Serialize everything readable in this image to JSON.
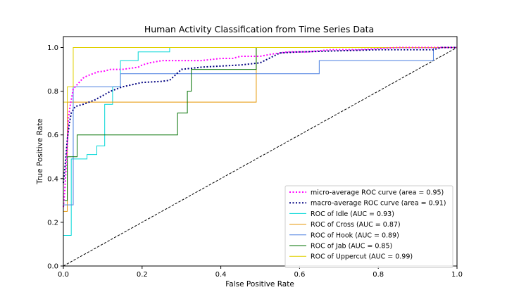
{
  "chart_data": {
    "type": "line",
    "title": "Human Activity Classification from Time Series Data",
    "xlabel": "False Positive Rate",
    "ylabel": "True Positive Rate",
    "xlim": [
      0,
      1
    ],
    "ylim": [
      0,
      1.05
    ],
    "xticks": [
      0.0,
      0.2,
      0.4,
      0.6,
      0.8,
      1.0
    ],
    "yticks": [
      0.0,
      0.2,
      0.4,
      0.6,
      0.8,
      1.0
    ],
    "xtick_labels": [
      "0.0",
      "0.2",
      "0.4",
      "0.6",
      "0.8",
      "1.0"
    ],
    "ytick_labels": [
      "0.0",
      "0.2",
      "0.4",
      "0.6",
      "0.8",
      "1.0"
    ],
    "grid": false,
    "legend_position": "lower-right",
    "series": [
      {
        "name": "micro-average ROC curve (area = 0.95)",
        "color": "#ff00ff",
        "style": "dotted",
        "x": [
          0,
          0.003,
          0.006,
          0.01,
          0.013,
          0.017,
          0.02,
          0.025,
          0.03,
          0.04,
          0.05,
          0.06,
          0.075,
          0.09,
          0.1,
          0.12,
          0.15,
          0.19,
          0.2,
          0.22,
          0.25,
          0.3,
          0.35,
          0.4,
          0.43,
          0.45,
          0.5,
          0.53,
          0.57,
          0.62,
          0.68,
          0.75,
          0.85,
          1.0
        ],
        "y": [
          0.27,
          0.33,
          0.42,
          0.55,
          0.68,
          0.73,
          0.76,
          0.81,
          0.82,
          0.84,
          0.86,
          0.87,
          0.88,
          0.89,
          0.89,
          0.9,
          0.9,
          0.91,
          0.92,
          0.93,
          0.94,
          0.94,
          0.94,
          0.95,
          0.95,
          0.96,
          0.96,
          0.97,
          0.98,
          0.98,
          0.99,
          0.99,
          1.0,
          1.0
        ]
      },
      {
        "name": "macro-average ROC curve (area = 0.91)",
        "color": "#000080",
        "style": "dotted",
        "x": [
          0,
          0.005,
          0.01,
          0.015,
          0.02,
          0.03,
          0.05,
          0.08,
          0.1,
          0.12,
          0.15,
          0.2,
          0.25,
          0.27,
          0.3,
          0.35,
          0.4,
          0.45,
          0.5,
          0.55,
          0.6,
          0.7,
          0.8,
          0.94,
          0.96,
          1.0
        ],
        "y": [
          0.38,
          0.47,
          0.58,
          0.65,
          0.7,
          0.73,
          0.74,
          0.76,
          0.78,
          0.8,
          0.82,
          0.84,
          0.845,
          0.85,
          0.9,
          0.91,
          0.915,
          0.92,
          0.93,
          0.975,
          0.98,
          0.985,
          0.99,
          0.99,
          1.0,
          1.0
        ]
      },
      {
        "name": "ROC of Idle (AUC = 0.93)",
        "color": "#00d7d7",
        "style": "solid",
        "x": [
          0,
          0,
          0.02,
          0.02,
          0.06,
          0.06,
          0.085,
          0.085,
          0.105,
          0.105,
          0.125,
          0.125,
          0.145,
          0.145,
          0.19,
          0.19,
          0.27,
          0.27,
          1.0
        ],
        "y": [
          0,
          0.14,
          0.14,
          0.49,
          0.49,
          0.51,
          0.51,
          0.55,
          0.55,
          0.74,
          0.74,
          0.82,
          0.82,
          0.94,
          0.94,
          0.98,
          0.98,
          1.0,
          1.0
        ]
      },
      {
        "name": "ROC of Cross (AUC = 0.87)",
        "color": "#e69500",
        "style": "solid",
        "x": [
          0,
          0,
          0.01,
          0.01,
          0.015,
          0.015,
          0.49,
          0.49,
          1.0
        ],
        "y": [
          0,
          0.25,
          0.25,
          0.75,
          0.75,
          0.75,
          0.75,
          1.0,
          1.0
        ]
      },
      {
        "name": "ROC of Hook (AUC = 0.89)",
        "color": "#4a7fe0",
        "style": "solid",
        "x": [
          0,
          0,
          0.025,
          0.025,
          0.145,
          0.145,
          0.5,
          0.5,
          0.65,
          0.65,
          0.94,
          0.94,
          1.0
        ],
        "y": [
          0,
          0.28,
          0.28,
          0.82,
          0.82,
          0.88,
          0.88,
          0.88,
          0.88,
          0.94,
          0.94,
          1.0,
          1.0
        ]
      },
      {
        "name": "ROC of Jab (AUC = 0.85)",
        "color": "#007000",
        "style": "solid",
        "x": [
          0,
          0,
          0.01,
          0.01,
          0.035,
          0.035,
          0.29,
          0.29,
          0.315,
          0.315,
          0.325,
          0.325,
          0.49,
          0.49,
          1.0
        ],
        "y": [
          0,
          0.3,
          0.3,
          0.5,
          0.5,
          0.6,
          0.6,
          0.7,
          0.7,
          0.8,
          0.8,
          0.9,
          0.9,
          1.0,
          1.0
        ]
      },
      {
        "name": "ROC of Uppercut (AUC = 0.99)",
        "color": "#e0d000",
        "style": "solid",
        "x": [
          0,
          0,
          0.01,
          0.01,
          0.025,
          0.025,
          1.0
        ],
        "y": [
          0,
          0.75,
          0.75,
          0.82,
          0.82,
          1.0,
          1.0
        ]
      }
    ],
    "diagonal": {
      "x": [
        0,
        1
      ],
      "y": [
        0,
        1
      ],
      "color": "#000000",
      "style": "dashed"
    }
  }
}
